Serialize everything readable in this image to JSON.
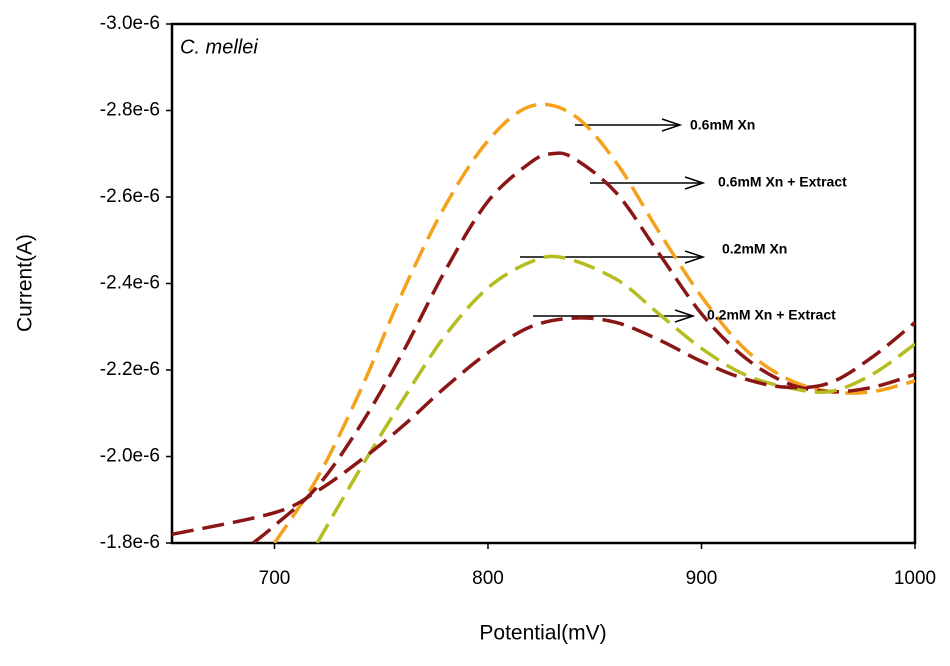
{
  "chart_data": {
    "type": "line",
    "title": "C. mellei",
    "x_label": "Potential(mV)",
    "y_label": "Current(A)",
    "xlim": [
      652,
      1000
    ],
    "xticks": [
      700,
      800,
      900,
      1000
    ],
    "ylim": [
      -1.8e-06,
      -3e-06
    ],
    "yticks": [
      {
        "value": -3e-06,
        "label": "-3.0e-6"
      },
      {
        "value": -2.8e-06,
        "label": "-2.8e-6"
      },
      {
        "value": -2.6e-06,
        "label": "-2.6e-6"
      },
      {
        "value": -2.4e-06,
        "label": "-2.4e-6"
      },
      {
        "value": -2.2e-06,
        "label": "-2.2e-6"
      },
      {
        "value": -2e-06,
        "label": "-2.0e-6"
      },
      {
        "value": -1.8e-06,
        "label": "-1.8e-6"
      }
    ],
    "grid": false,
    "series": [
      {
        "name": "0.6mM Xn",
        "color": "#f5a11c",
        "x": [
          700,
          720,
          740,
          760,
          780,
          800,
          820,
          840,
          860,
          880,
          900,
          920,
          940,
          960,
          980,
          1000
        ],
        "values": [
          -1.8e-06,
          -1.95e-06,
          -2.15e-06,
          -2.38e-06,
          -2.58e-06,
          -2.73e-06,
          -2.81e-06,
          -2.79e-06,
          -2.68e-06,
          -2.52e-06,
          -2.37e-06,
          -2.25e-06,
          -2.18e-06,
          -2.15e-06,
          -2.15e-06,
          -2.175e-06
        ]
      },
      {
        "name": "0.6mM Xn + Extract",
        "color": "#8b1616",
        "x": [
          690,
          700,
          720,
          740,
          760,
          780,
          800,
          820,
          830,
          840,
          860,
          880,
          900,
          920,
          940,
          960,
          980,
          1000
        ],
        "values": [
          -1.8e-06,
          -1.84e-06,
          -1.93e-06,
          -2.07e-06,
          -2.24e-06,
          -2.43e-06,
          -2.59e-06,
          -2.68e-06,
          -2.7e-06,
          -2.69e-06,
          -2.61e-06,
          -2.47e-06,
          -2.33e-06,
          -2.23e-06,
          -2.17e-06,
          -2.15e-06,
          -2.16e-06,
          -2.19e-06
        ]
      },
      {
        "name": "0.2mM Xn",
        "color": "#b5bd20",
        "x": [
          720,
          740,
          760,
          780,
          800,
          820,
          835,
          860,
          880,
          900,
          920,
          940,
          960,
          980,
          1000
        ],
        "values": [
          -1.8e-06,
          -1.97e-06,
          -2.13e-06,
          -2.28e-06,
          -2.39e-06,
          -2.45e-06,
          -2.46e-06,
          -2.41e-06,
          -2.33e-06,
          -2.25e-06,
          -2.19e-06,
          -2.16e-06,
          -2.15e-06,
          -2.19e-06,
          -2.26e-06
        ]
      },
      {
        "name": "0.2mM Xn + Extract",
        "color": "#8b1616",
        "x": [
          652,
          700,
          720,
          740,
          760,
          780,
          800,
          820,
          840,
          860,
          880,
          900,
          920,
          940,
          960,
          980,
          1000
        ],
        "values": [
          -1.82e-06,
          -1.87e-06,
          -1.92e-06,
          -1.99e-06,
          -2.07e-06,
          -2.16e-06,
          -2.24e-06,
          -2.3e-06,
          -2.32e-06,
          -2.31e-06,
          -2.27e-06,
          -2.22e-06,
          -2.18e-06,
          -2.16e-06,
          -2.17e-06,
          -2.23e-06,
          -2.31e-06
        ]
      }
    ]
  }
}
